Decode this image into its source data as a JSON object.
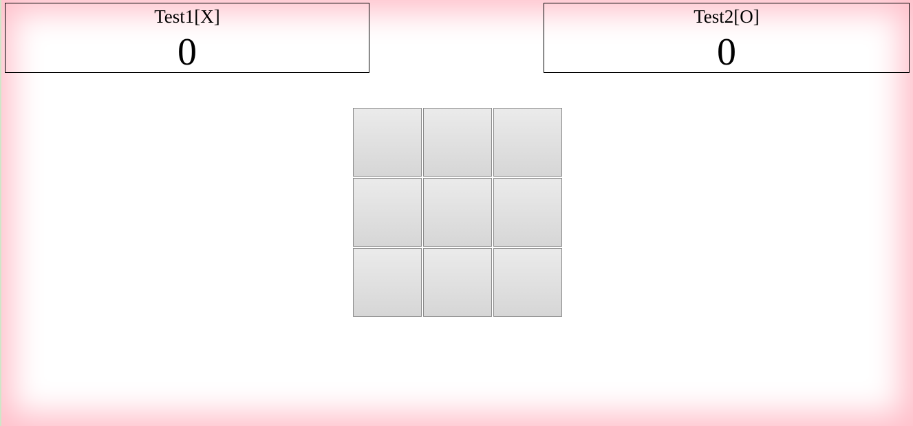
{
  "players": [
    {
      "name": "Test1[X]",
      "score": "0"
    },
    {
      "name": "Test2[O]",
      "score": "0"
    }
  ],
  "board": {
    "cells": [
      "",
      "",
      "",
      "",
      "",
      "",
      "",
      "",
      ""
    ]
  },
  "colors": {
    "frame_glow": "#ffc0cb",
    "cell_gradient_top": "#ebebeb",
    "cell_gradient_bottom": "#d6d6d6",
    "cell_border": "#8a8a8a"
  }
}
